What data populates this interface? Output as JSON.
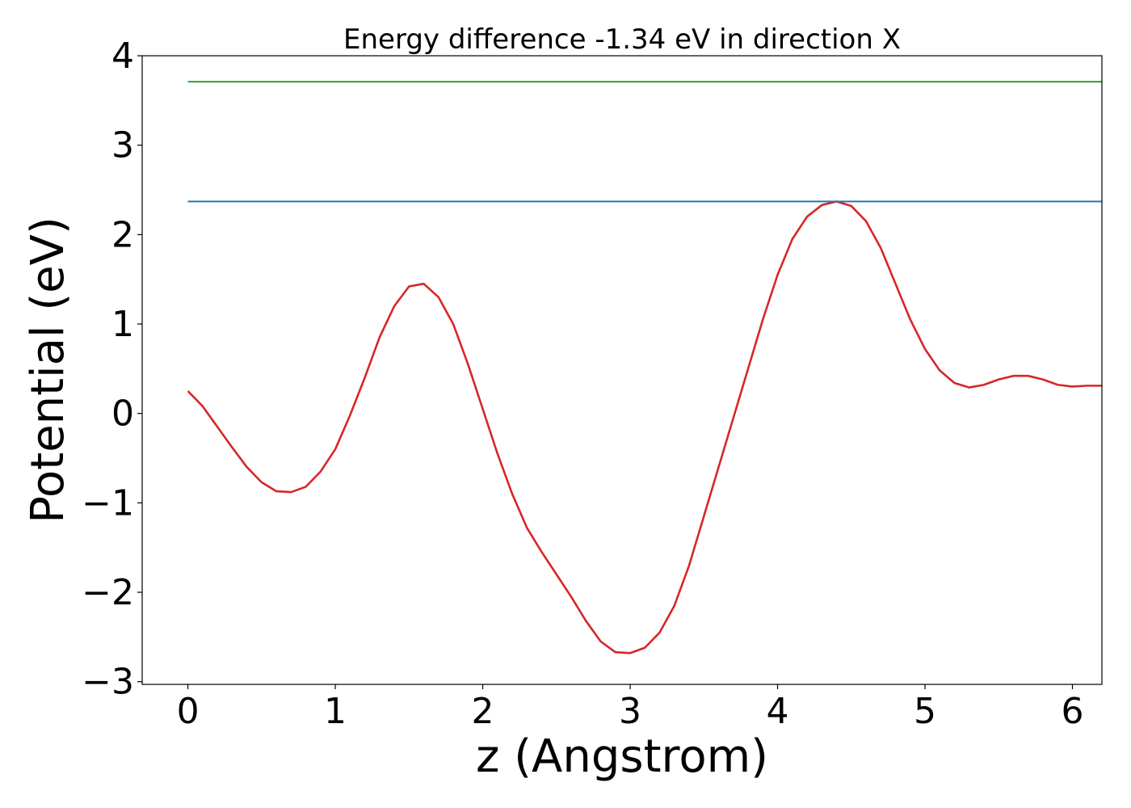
{
  "chart_data": {
    "type": "line",
    "title": "Energy difference -1.34 eV in direction X",
    "xlabel": "z (Angstrom)",
    "ylabel": "Potential (eV)",
    "xlim": [
      -0.31,
      6.2
    ],
    "ylim": [
      -3.03,
      4.0
    ],
    "xticks": [
      0,
      1,
      2,
      3,
      4,
      5,
      6
    ],
    "yticks": [
      -3,
      -2,
      -1,
      0,
      1,
      2,
      3,
      4
    ],
    "xtick_labels": [
      "0",
      "1",
      "2",
      "3",
      "4",
      "5",
      "6"
    ],
    "ytick_labels": [
      "−3",
      "−2",
      "−1",
      "0",
      "1",
      "2",
      "3",
      "4"
    ],
    "grid": false,
    "legend": false,
    "series": [
      {
        "color": "#d62728",
        "x": [
          0.0,
          0.1,
          0.2,
          0.3,
          0.4,
          0.5,
          0.6,
          0.7,
          0.8,
          0.9,
          1.0,
          1.1,
          1.2,
          1.3,
          1.4,
          1.5,
          1.6,
          1.7,
          1.8,
          1.9,
          2.0,
          2.1,
          2.2,
          2.3,
          2.4,
          2.5,
          2.6,
          2.7,
          2.8,
          2.9,
          3.0,
          3.1,
          3.2,
          3.3,
          3.4,
          3.5,
          3.6,
          3.7,
          3.8,
          3.9,
          4.0,
          4.1,
          4.2,
          4.3,
          4.4,
          4.5,
          4.6,
          4.7,
          4.8,
          4.9,
          5.0,
          5.1,
          5.2,
          5.3,
          5.4,
          5.5,
          5.6,
          5.7,
          5.8,
          5.9,
          6.0,
          6.1,
          6.2
        ],
        "y": [
          0.25,
          0.08,
          -0.15,
          -0.38,
          -0.6,
          -0.77,
          -0.87,
          -0.88,
          -0.82,
          -0.65,
          -0.4,
          -0.02,
          0.4,
          0.85,
          1.2,
          1.42,
          1.45,
          1.3,
          1.0,
          0.55,
          0.05,
          -0.45,
          -0.9,
          -1.28,
          -1.55,
          -1.8,
          -2.05,
          -2.32,
          -2.55,
          -2.67,
          -2.68,
          -2.62,
          -2.45,
          -2.15,
          -1.7,
          -1.15,
          -0.6,
          -0.05,
          0.5,
          1.05,
          1.55,
          1.95,
          2.2,
          2.33,
          2.37,
          2.32,
          2.15,
          1.85,
          1.45,
          1.05,
          0.72,
          0.48,
          0.34,
          0.29,
          0.32,
          0.38,
          0.42,
          0.42,
          0.38,
          0.32,
          0.3,
          0.31,
          0.31
        ]
      },
      {
        "color": "#1f77b4",
        "x": [
          0.0,
          6.2
        ],
        "y": [
          2.37,
          2.37
        ]
      },
      {
        "color": "#2ca02c",
        "x": [
          0.0,
          6.2
        ],
        "y": [
          3.71,
          3.71
        ]
      }
    ]
  }
}
